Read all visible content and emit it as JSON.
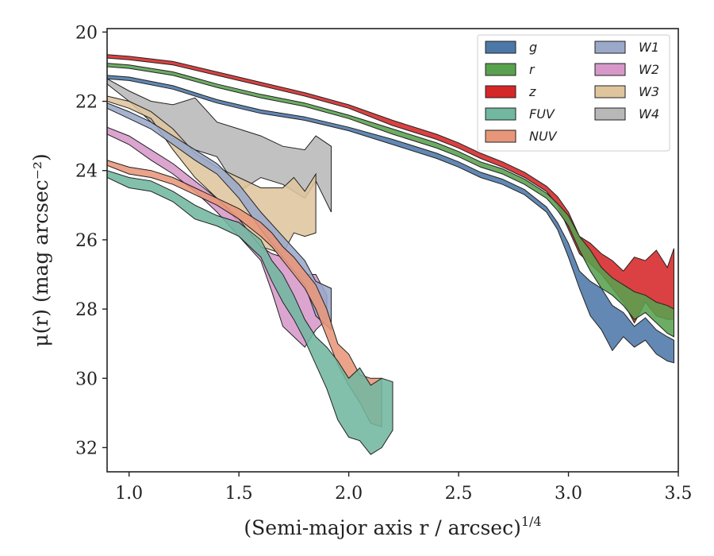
{
  "chart_data": {
    "type": "area",
    "title": "",
    "xlabel": "(Semi-major axis r / arcsec)",
    "xlabel_exponent": "1/4",
    "ylabel": "μ(r) (mag arcsec⁻²)",
    "xlim": [
      0.9,
      3.5
    ],
    "ylim": [
      32.7,
      19.9
    ],
    "y_inverted": true,
    "grid": false,
    "legend_position": "top-right",
    "legend_columns": 2,
    "x_ticks": [
      "1.0",
      "1.5",
      "2.0",
      "2.5",
      "3.0",
      "3.5"
    ],
    "y_ticks": [
      "20",
      "22",
      "24",
      "26",
      "28",
      "30",
      "32"
    ],
    "series": [
      {
        "name": "g",
        "color": "#4c78a8",
        "x": [
          0.9,
          1.0,
          1.2,
          1.4,
          1.6,
          1.8,
          2.0,
          2.2,
          2.4,
          2.5,
          2.6,
          2.7,
          2.8,
          2.9,
          2.95,
          3.0,
          3.05,
          3.1,
          3.15,
          3.2,
          3.25,
          3.3,
          3.35,
          3.4,
          3.45,
          3.48
        ],
        "top": [
          21.25,
          21.3,
          21.55,
          21.95,
          22.25,
          22.45,
          22.75,
          23.1,
          23.5,
          23.75,
          24.05,
          24.25,
          24.55,
          25.05,
          25.5,
          26.1,
          26.9,
          27.2,
          27.4,
          27.9,
          28.1,
          28.5,
          28.25,
          28.6,
          28.8,
          28.9
        ],
        "bot": [
          21.35,
          21.4,
          21.65,
          22.05,
          22.35,
          22.55,
          22.85,
          23.25,
          23.65,
          23.9,
          24.2,
          24.4,
          24.7,
          25.2,
          25.7,
          26.5,
          27.4,
          28.2,
          28.6,
          29.2,
          28.8,
          29.1,
          28.9,
          29.3,
          29.5,
          29.55
        ]
      },
      {
        "name": "r",
        "color": "#59a14f",
        "x": [
          0.9,
          1.0,
          1.2,
          1.4,
          1.6,
          1.8,
          2.0,
          2.2,
          2.4,
          2.5,
          2.6,
          2.7,
          2.8,
          2.9,
          2.95,
          3.0,
          3.05,
          3.1,
          3.15,
          3.2,
          3.25,
          3.3,
          3.35,
          3.4,
          3.45,
          3.48
        ],
        "top": [
          20.9,
          20.95,
          21.15,
          21.5,
          21.8,
          22.05,
          22.4,
          22.8,
          23.2,
          23.45,
          23.75,
          23.95,
          24.25,
          24.65,
          24.95,
          25.3,
          25.9,
          26.3,
          26.8,
          27.1,
          27.3,
          27.5,
          27.6,
          27.8,
          27.9,
          28.0
        ],
        "bot": [
          21.0,
          21.05,
          21.25,
          21.6,
          21.9,
          22.15,
          22.5,
          22.95,
          23.35,
          23.6,
          23.9,
          24.1,
          24.4,
          24.8,
          25.15,
          25.6,
          26.3,
          26.9,
          27.4,
          27.6,
          27.9,
          28.3,
          28.1,
          28.4,
          28.7,
          28.8
        ]
      },
      {
        "name": "z",
        "color": "#d62728",
        "x": [
          0.9,
          1.0,
          1.2,
          1.4,
          1.6,
          1.8,
          2.0,
          2.2,
          2.4,
          2.5,
          2.6,
          2.7,
          2.8,
          2.9,
          2.95,
          3.0,
          3.05,
          3.1,
          3.15,
          3.2,
          3.25,
          3.3,
          3.35,
          3.4,
          3.45,
          3.48
        ],
        "top": [
          20.65,
          20.7,
          20.85,
          21.15,
          21.45,
          21.75,
          22.1,
          22.55,
          22.95,
          23.2,
          23.5,
          23.75,
          24.05,
          24.45,
          24.75,
          25.2,
          25.9,
          26.1,
          26.4,
          26.6,
          26.9,
          26.5,
          26.6,
          26.3,
          26.8,
          26.25
        ],
        "bot": [
          20.75,
          20.8,
          20.95,
          21.25,
          21.55,
          21.85,
          22.2,
          22.7,
          23.1,
          23.35,
          23.65,
          23.9,
          24.2,
          24.6,
          25.0,
          25.7,
          26.4,
          26.7,
          27.0,
          27.4,
          27.8,
          28.4,
          27.8,
          28.2,
          28.3,
          28.3
        ]
      },
      {
        "name": "FUV",
        "color": "#72b7a0",
        "x": [
          0.9,
          1.0,
          1.1,
          1.2,
          1.3,
          1.4,
          1.5,
          1.6,
          1.65,
          1.7,
          1.75,
          1.8,
          1.85,
          1.9,
          1.95,
          2.0,
          2.05,
          2.1,
          2.15,
          2.2
        ],
        "top": [
          24.0,
          24.2,
          24.3,
          24.6,
          25.0,
          25.3,
          25.5,
          26.0,
          26.6,
          27.0,
          27.6,
          28.3,
          28.8,
          29.1,
          29.5,
          30.0,
          29.7,
          30.2,
          30.0,
          30.1
        ],
        "bot": [
          24.2,
          24.5,
          24.6,
          24.9,
          25.4,
          25.6,
          25.9,
          26.5,
          27.2,
          27.8,
          28.3,
          28.9,
          29.6,
          30.3,
          31.2,
          31.7,
          31.8,
          32.2,
          32.0,
          31.5
        ]
      },
      {
        "name": "NUV",
        "color": "#e8967a",
        "x": [
          0.9,
          1.0,
          1.1,
          1.2,
          1.3,
          1.4,
          1.5,
          1.6,
          1.65,
          1.7,
          1.75,
          1.8,
          1.85,
          1.9,
          1.95,
          2.0,
          2.05,
          2.1,
          2.15
        ],
        "top": [
          23.7,
          23.9,
          24.0,
          24.2,
          24.5,
          24.8,
          25.1,
          25.5,
          25.8,
          26.2,
          26.5,
          26.9,
          27.3,
          28.0,
          29.0,
          29.3,
          29.9,
          30.0,
          30.0
        ],
        "bot": [
          23.85,
          24.1,
          24.2,
          24.4,
          24.7,
          25.0,
          25.4,
          25.9,
          26.2,
          26.6,
          27.0,
          27.4,
          28.0,
          28.8,
          29.6,
          30.2,
          30.7,
          31.3,
          31.4
        ]
      },
      {
        "name": "W1",
        "color": "#9aa9c9",
        "x": [
          0.9,
          1.0,
          1.1,
          1.2,
          1.3,
          1.4,
          1.5,
          1.6,
          1.7,
          1.8,
          1.85,
          1.92
        ],
        "top": [
          22.05,
          22.3,
          22.6,
          23.0,
          23.4,
          23.8,
          24.4,
          25.2,
          25.9,
          26.6,
          27.2,
          27.4
        ],
        "bot": [
          22.2,
          22.5,
          22.8,
          23.25,
          23.7,
          24.1,
          24.8,
          25.7,
          26.5,
          27.3,
          28.2,
          28.6
        ]
      },
      {
        "name": "W2",
        "color": "#d698c9",
        "x": [
          0.9,
          1.0,
          1.1,
          1.2,
          1.3,
          1.4,
          1.5,
          1.6,
          1.65,
          1.7,
          1.75,
          1.8,
          1.85,
          1.9
        ],
        "top": [
          22.75,
          23.0,
          23.4,
          23.8,
          24.3,
          24.8,
          25.4,
          26.2,
          26.4,
          26.5,
          26.9,
          27.0,
          27.0,
          27.6
        ],
        "bot": [
          22.95,
          23.25,
          23.7,
          24.1,
          24.6,
          25.2,
          25.9,
          26.6,
          27.5,
          28.5,
          28.8,
          29.1,
          28.6,
          28.3
        ]
      },
      {
        "name": "W3",
        "color": "#dfc59d",
        "x": [
          0.9,
          1.0,
          1.1,
          1.2,
          1.3,
          1.4,
          1.5,
          1.6,
          1.7,
          1.75,
          1.8,
          1.85
        ],
        "top": [
          21.85,
          22.0,
          22.3,
          22.8,
          23.5,
          23.9,
          24.2,
          24.5,
          24.5,
          24.2,
          24.6,
          24.1
        ],
        "bot": [
          22.0,
          22.2,
          22.5,
          23.4,
          24.2,
          24.8,
          25.5,
          26.2,
          26.4,
          25.8,
          25.9,
          25.8
        ]
      },
      {
        "name": "W4",
        "color": "#b8b8b8",
        "x": [
          0.9,
          1.0,
          1.1,
          1.2,
          1.3,
          1.4,
          1.5,
          1.6,
          1.7,
          1.8,
          1.85,
          1.92
        ],
        "top": [
          21.35,
          21.7,
          22.0,
          22.1,
          21.9,
          22.6,
          22.8,
          23.0,
          23.3,
          23.4,
          23.0,
          23.3
        ],
        "bot": [
          21.5,
          22.0,
          22.6,
          23.1,
          23.4,
          23.6,
          24.6,
          24.2,
          24.4,
          24.8,
          24.3,
          25.2
        ]
      }
    ]
  }
}
